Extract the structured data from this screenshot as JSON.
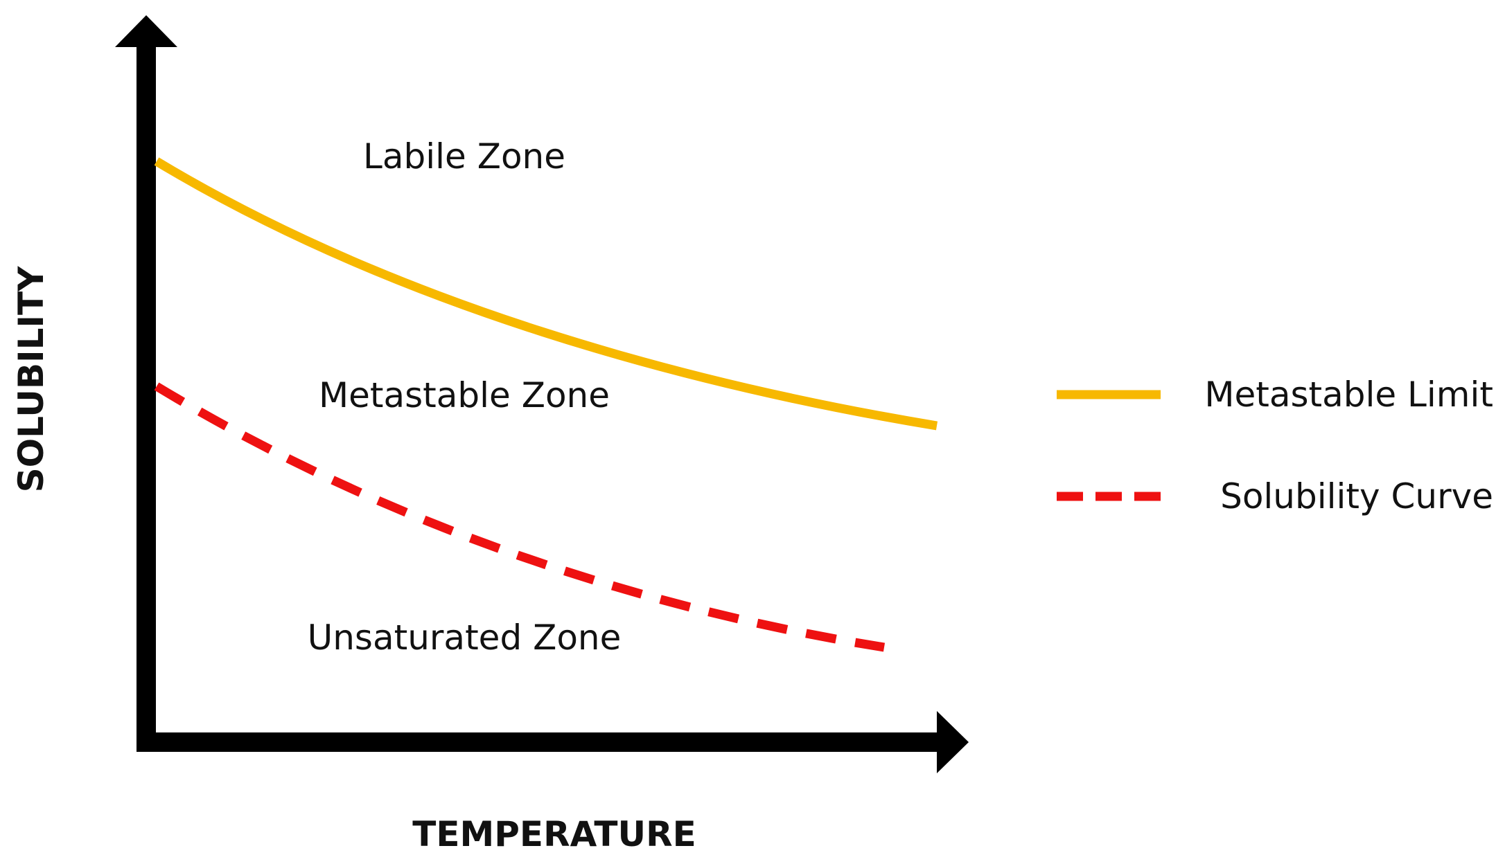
{
  "axes": {
    "x_label": "TEMPERATURE",
    "y_label": "SOLUBILITY",
    "color": "#000000"
  },
  "zones": {
    "labile": "Labile Zone",
    "metastable": "Metastable Zone",
    "unsaturated": "Unsaturated Zone"
  },
  "curves": {
    "metastable_limit": {
      "name": "Metastable Limit",
      "color": "#F7B800",
      "style": "solid"
    },
    "solubility_curve": {
      "name": "Solubility Curve",
      "color": "#EE1111",
      "style": "dashed"
    }
  },
  "legend": {
    "items": [
      "Metastable Limit",
      "Solubility Curve"
    ],
    "placement": "right"
  }
}
